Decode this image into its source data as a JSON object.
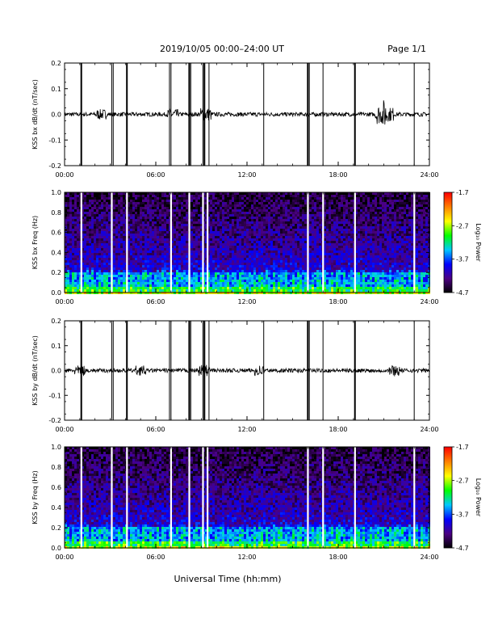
{
  "header": {
    "title": "2019/10/05  00:00–24:00 UT",
    "page": "Page 1/1"
  },
  "xaxis": {
    "label": "Universal Time (hh:mm)",
    "ticks": [
      "00:00",
      "06:00",
      "12:00",
      "18:00",
      "24:00"
    ],
    "range_hours": [
      0,
      24
    ]
  },
  "colorbar": {
    "label": "Log₁₀ Power",
    "ticks": [
      "-1.7",
      "-2.7",
      "-3.7",
      "-4.7"
    ],
    "range": [
      -4.7,
      -1.7
    ],
    "colors": [
      "#000000",
      "#4b0082",
      "#0000ff",
      "#00c8ff",
      "#00ff00",
      "#ffff00",
      "#ff8000",
      "#ff0000"
    ]
  },
  "chart_data": [
    {
      "type": "line",
      "ylabel": "KSS bx dB/dt (nT/sec)",
      "ylim": [
        -0.2,
        0.2
      ],
      "yticks": [
        "0.2",
        "0.1",
        "0.0",
        "-0.1",
        "-0.2"
      ],
      "series": [
        {
          "baseline": 0.0,
          "noise": 0.008,
          "bursts_hours": [
            [
              2.4,
              0.012
            ],
            [
              7.1,
              0.012
            ],
            [
              9.3,
              0.018
            ],
            [
              20.8,
              0.03
            ],
            [
              21.3,
              0.02
            ]
          ]
        }
      ],
      "spikes_hours": [
        1.1,
        3.1,
        3.2,
        4.1,
        6.9,
        7.0,
        8.2,
        8.3,
        9.1,
        9.2,
        9.5,
        13.1,
        16.0,
        16.1,
        17.0,
        19.1,
        23.0
      ]
    },
    {
      "type": "heatmap",
      "ylabel": "KSS bx Freq (Hz)",
      "ylim": [
        0.0,
        1.0
      ],
      "yticks": [
        "1.0",
        "0.8",
        "0.6",
        "0.4",
        "0.2",
        "0.0"
      ],
      "gaps_hours": [
        1.1,
        3.1,
        4.1,
        7.0,
        8.2,
        9.1,
        9.4,
        16.0,
        17.0,
        19.1,
        23.0
      ]
    },
    {
      "type": "line",
      "ylabel": "KSS by dB/dt (nT/sec)",
      "ylim": [
        -0.2,
        0.2
      ],
      "yticks": [
        "0.2",
        "0.1",
        "0.0",
        "-0.1",
        "-0.2"
      ],
      "series": [
        {
          "baseline": 0.0,
          "noise": 0.008,
          "bursts_hours": [
            [
              1.0,
              0.012
            ],
            [
              5.0,
              0.012
            ],
            [
              9.2,
              0.015
            ],
            [
              12.8,
              0.014
            ],
            [
              21.7,
              0.015
            ]
          ]
        }
      ],
      "spikes_hours": [
        1.1,
        3.1,
        3.2,
        4.1,
        6.9,
        7.0,
        8.2,
        8.3,
        9.1,
        9.2,
        9.5,
        13.1,
        16.0,
        16.1,
        17.0,
        19.1,
        23.0
      ]
    },
    {
      "type": "heatmap",
      "ylabel": "KSS by Freq (Hz)",
      "ylim": [
        0.0,
        1.0
      ],
      "yticks": [
        "1.0",
        "0.8",
        "0.6",
        "0.4",
        "0.2",
        "0.0"
      ],
      "gaps_hours": [
        1.1,
        3.1,
        4.1,
        7.0,
        8.2,
        9.1,
        9.4,
        16.0,
        17.0,
        19.1,
        23.0
      ]
    }
  ]
}
